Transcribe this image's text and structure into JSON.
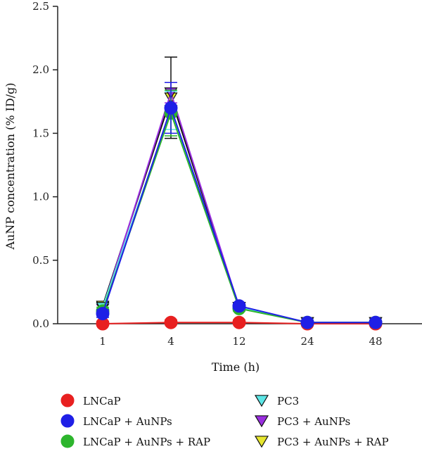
{
  "chart_data": {
    "type": "line",
    "title": "",
    "xlabel": "Time (h)",
    "ylabel": "AuNP concentration (% ID/g)",
    "categories": [
      "1",
      "4",
      "12",
      "24",
      "48"
    ],
    "ylim": [
      0,
      2.5
    ],
    "yticks": [
      "0.0",
      "0.5",
      "1.0",
      "1.5",
      "2.0",
      "2.5"
    ],
    "error_bars": true,
    "legend_position": "bottom",
    "series": [
      {
        "name": "LNCaP",
        "marker": "circle",
        "color": "#e82020",
        "values": [
          0.0,
          0.01,
          0.01,
          0.0,
          0.0
        ],
        "errors": [
          0.02,
          0.02,
          0.02,
          0.01,
          0.01
        ]
      },
      {
        "name": "LNCaP + AuNPs",
        "marker": "circle",
        "color": "#1f1fe6",
        "values": [
          0.08,
          1.7,
          0.14,
          0.01,
          0.01
        ],
        "errors": [
          0.03,
          0.2,
          0.02,
          0.01,
          0.01
        ]
      },
      {
        "name": "LNCaP + AuNPs + RAP",
        "marker": "circle",
        "color": "#2db52d",
        "values": [
          0.1,
          1.66,
          0.12,
          0.01,
          0.01
        ],
        "errors": [
          0.03,
          0.18,
          0.02,
          0.01,
          0.01
        ]
      },
      {
        "name": "PC3",
        "marker": "triangle-down",
        "color": "#5ce6e6",
        "values": [
          0.13,
          1.68,
          0.13,
          0.01,
          0.01
        ],
        "errors": [
          0.03,
          0.15,
          0.02,
          0.01,
          0.01
        ]
      },
      {
        "name": "PC3 + AuNPs",
        "marker": "triangle-down",
        "color": "#9a2ee0",
        "values": [
          0.12,
          1.82,
          0.13,
          0.01,
          0.01
        ],
        "errors": [
          0.03,
          0.08,
          0.02,
          0.01,
          0.01
        ]
      },
      {
        "name": "PC3 + AuNPs + RAP",
        "marker": "triangle-down",
        "color": "#e6e62e",
        "values": [
          0.14,
          1.78,
          0.13,
          0.01,
          0.01
        ],
        "errors": [
          0.03,
          0.32,
          0.02,
          0.01,
          0.01
        ]
      }
    ]
  }
}
